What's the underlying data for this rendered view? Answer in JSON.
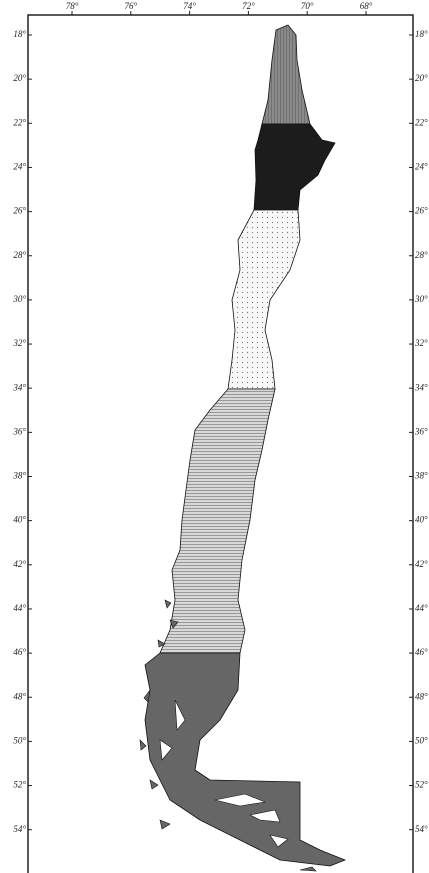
{
  "map": {
    "top_labels": [
      "78°",
      "76°",
      "74°",
      "72°",
      "70°",
      "68°"
    ],
    "lat_labels": [
      "18°",
      "20°",
      "22°",
      "24°",
      "26°",
      "28°",
      "30°",
      "32°",
      "34°",
      "36°",
      "38°",
      "40°",
      "42°",
      "44°",
      "46°",
      "48°",
      "50°",
      "52°",
      "54°"
    ]
  }
}
